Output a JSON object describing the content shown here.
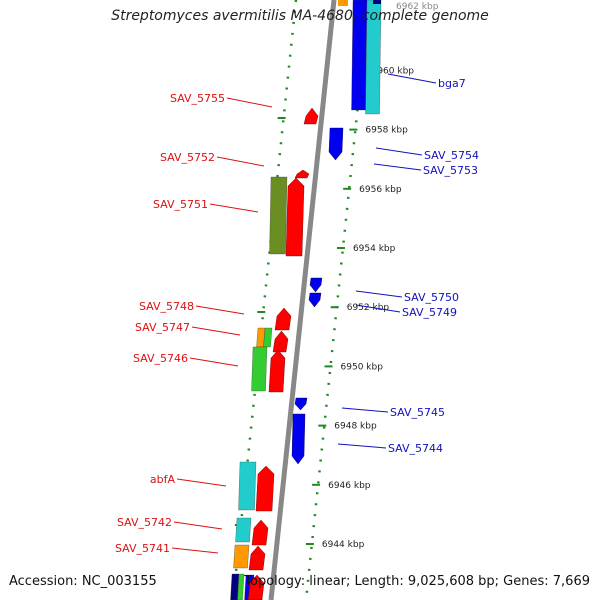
{
  "title": "Streptomyces avermitilis MA-4680, complete genome",
  "accession": "Accession: NC_003155",
  "summary": "Topology: linear; Length: 9,025,608 bp; Genes: 7,669",
  "colors": {
    "backbone": "#888888",
    "ticks": "#228822",
    "red": "#ff0000",
    "blue": "#0000ee",
    "cyan": "#22cccc",
    "olive": "#6b8e23",
    "green": "#33cc33",
    "orange": "#ff9900",
    "navy": "#000080",
    "label_left": "#dd1111",
    "label_right": "#1111bb"
  },
  "kbp_ticks": [
    {
      "label": "6944 kbp",
      "kbp": 6944
    },
    {
      "label": "6946 kbp",
      "kbp": 6946
    },
    {
      "label": "6948 kbp",
      "kbp": 6948
    },
    {
      "label": "6950 kbp",
      "kbp": 6950
    },
    {
      "label": "6952 kbp",
      "kbp": 6952
    },
    {
      "label": "6954 kbp",
      "kbp": 6954
    },
    {
      "label": "6956 kbp",
      "kbp": 6956
    },
    {
      "label": "6958 kbp",
      "kbp": 6958
    },
    {
      "label": "6960 kbp",
      "kbp": 6960
    }
  ],
  "top_clipped_label": "6962 kbp",
  "left_genes": [
    {
      "name": "SAV_5755",
      "color": "red",
      "shape": "small"
    },
    {
      "name": "SAV_5752",
      "color": "red",
      "shape": "small"
    },
    {
      "name": "SAV_5751",
      "color": "olive",
      "shape": "pair-red"
    },
    {
      "name": "SAV_5748",
      "color": "red",
      "shape": "medium"
    },
    {
      "name": "SAV_5747",
      "color": "orange",
      "shape": "small"
    },
    {
      "name": "SAV_5746",
      "color": "green",
      "shape": "pair-red"
    },
    {
      "name": "abfA",
      "color": "cyan",
      "shape": "pair-red"
    },
    {
      "name": "SAV_5742",
      "color": "cyan",
      "shape": "pair-red"
    },
    {
      "name": "SAV_5741",
      "color": "orange",
      "shape": "pair-red"
    }
  ],
  "right_genes": [
    {
      "name": "bga7",
      "color": "cyan"
    },
    {
      "name": "SAV_5754",
      "color": "blue"
    },
    {
      "name": "SAV_5753",
      "color": "blue"
    },
    {
      "name": "SAV_5750",
      "color": "blue"
    },
    {
      "name": "SAV_5749",
      "color": "blue"
    },
    {
      "name": "SAV_5745",
      "color": "blue"
    },
    {
      "name": "SAV_5744",
      "color": "blue"
    }
  ]
}
